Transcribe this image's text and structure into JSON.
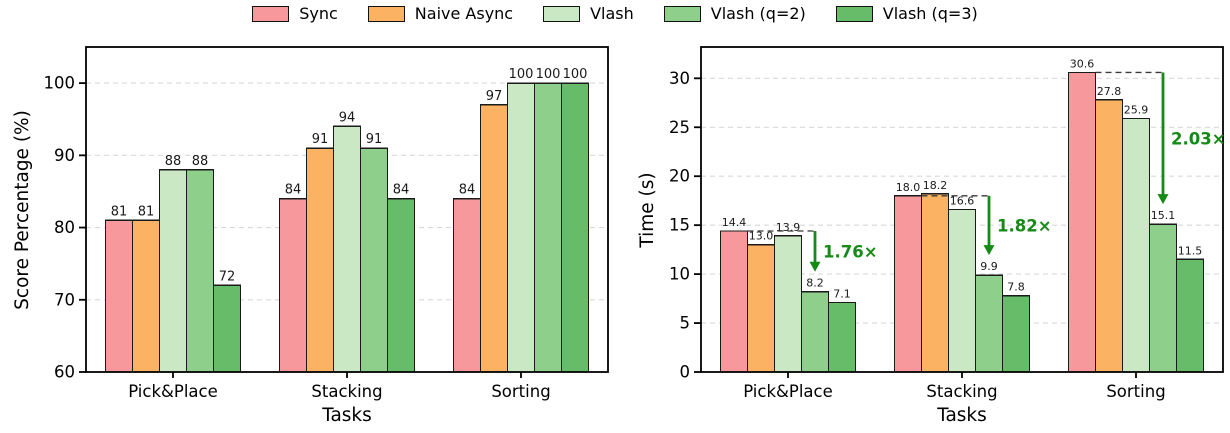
{
  "legend": {
    "items": [
      {
        "label": "Sync",
        "color": "#f7999c"
      },
      {
        "label": "Naive Async",
        "color": "#fbb262"
      },
      {
        "label": "Vlash",
        "color": "#cbe8c5"
      },
      {
        "label": "Vlash (q=2)",
        "color": "#8fcf8c"
      },
      {
        "label": "Vlash (q=3)",
        "color": "#66bc69"
      }
    ]
  },
  "chart_data": [
    {
      "type": "bar",
      "title": "",
      "xlabel": "Tasks",
      "ylabel": "Score Percentage (%)",
      "categories": [
        "Pick&Place",
        "Stacking",
        "Sorting"
      ],
      "ylim": [
        60,
        105
      ],
      "yticks": [
        60,
        70,
        80,
        90,
        100
      ],
      "grid": true,
      "legend_position": "top-center-shared",
      "label_size": 13,
      "series": [
        {
          "name": "Sync",
          "color": "#f7999c",
          "values": [
            81,
            84,
            84
          ],
          "labels": [
            "81",
            "84",
            "84"
          ]
        },
        {
          "name": "Naive Async",
          "color": "#fbb262",
          "values": [
            81,
            91,
            97
          ],
          "labels": [
            "81",
            "91",
            "97"
          ]
        },
        {
          "name": "Vlash",
          "color": "#cbe8c5",
          "values": [
            88,
            94,
            100
          ],
          "labels": [
            "88",
            "94",
            "100"
          ]
        },
        {
          "name": "Vlash (q=2)",
          "color": "#8fcf8c",
          "values": [
            88,
            91,
            100
          ],
          "labels": [
            "88",
            "91",
            "100"
          ]
        },
        {
          "name": "Vlash (q=3)",
          "color": "#66bc69",
          "values": [
            72,
            84,
            100
          ],
          "labels": [
            "72",
            "84",
            "100"
          ]
        }
      ]
    },
    {
      "type": "bar",
      "title": "",
      "xlabel": "Tasks",
      "ylabel": "Time (s)",
      "categories": [
        "Pick&Place",
        "Stacking",
        "Sorting"
      ],
      "ylim": [
        0,
        33.2
      ],
      "yticks": [
        0,
        5,
        10,
        15,
        20,
        25,
        30
      ],
      "grid": true,
      "label_size": 11,
      "series": [
        {
          "name": "Sync",
          "color": "#f7999c",
          "values": [
            14.4,
            18.0,
            30.6
          ],
          "labels": [
            "14.4",
            "18.0",
            "30.6"
          ]
        },
        {
          "name": "Naive Async",
          "color": "#fbb262",
          "values": [
            13.0,
            18.2,
            27.8
          ],
          "labels": [
            "13.0",
            "18.2",
            "27.8"
          ]
        },
        {
          "name": "Vlash",
          "color": "#cbe8c5",
          "values": [
            13.9,
            16.6,
            25.9
          ],
          "labels": [
            "13.9",
            "16.6",
            "25.9"
          ]
        },
        {
          "name": "Vlash (q=2)",
          "color": "#8fcf8c",
          "values": [
            8.2,
            9.9,
            15.1
          ],
          "labels": [
            "8.2",
            "9.9",
            "15.1"
          ]
        },
        {
          "name": "Vlash (q=3)",
          "color": "#66bc69",
          "values": [
            7.1,
            7.8,
            11.5
          ],
          "labels": [
            "7.1",
            "7.8",
            "11.5"
          ]
        }
      ],
      "annotation_color": "#168a16",
      "annotations": [
        {
          "group": 0,
          "from_series": "Sync",
          "to_series": "Vlash (q=2)",
          "label": "1.76×"
        },
        {
          "group": 1,
          "from_series": "Sync",
          "to_series": "Vlash (q=2)",
          "label": "1.82×"
        },
        {
          "group": 2,
          "from_series": "Sync",
          "to_series": "Vlash (q=2)",
          "label": "2.03×"
        }
      ]
    }
  ]
}
